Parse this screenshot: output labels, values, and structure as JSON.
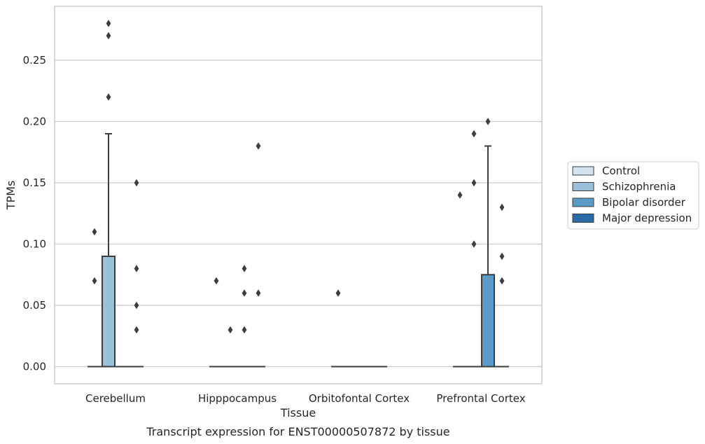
{
  "chart_data": {
    "type": "box",
    "caption": "Transcript expression for ENST00000507872 by tissue",
    "xlabel": "Tissue",
    "ylabel": "TPMs",
    "ylim": [
      -0.014,
      0.294
    ],
    "yticks": [
      0.0,
      0.05,
      0.1,
      0.15,
      0.2,
      0.25
    ],
    "ytick_labels": [
      "0.00",
      "0.05",
      "0.10",
      "0.15",
      "0.20",
      "0.25"
    ],
    "grid": "horizontal",
    "legend_position": "right",
    "categories": [
      "Cerebellum",
      "Hipppocampus",
      "Orbitofontal Cortex",
      "Prefrontal Cortex"
    ],
    "series": [
      {
        "name": "Control",
        "color": "#d4e3f0",
        "boxes": [
          {
            "q1": 0,
            "median": 0,
            "q3": 0,
            "whisker_low": 0,
            "whisker_high": 0,
            "outliers": [
              0.07,
              0.11
            ]
          },
          {
            "q1": 0,
            "median": 0,
            "q3": 0,
            "whisker_low": 0,
            "whisker_high": 0,
            "outliers": [
              0.07
            ]
          },
          {
            "q1": 0,
            "median": 0,
            "q3": 0,
            "whisker_low": 0,
            "whisker_high": 0,
            "outliers": [
              0.06
            ]
          },
          {
            "q1": 0,
            "median": 0,
            "q3": 0,
            "whisker_low": 0,
            "whisker_high": 0,
            "outliers": [
              0.14
            ]
          }
        ]
      },
      {
        "name": "Schizophrenia",
        "color": "#9ac0da",
        "boxes": [
          {
            "q1": 0,
            "median": 0,
            "q3": 0.09,
            "whisker_low": 0,
            "whisker_high": 0.19,
            "outliers": [
              0.22,
              0.27,
              0.28
            ]
          },
          {
            "q1": 0,
            "median": 0,
            "q3": 0,
            "whisker_low": 0,
            "whisker_high": 0,
            "outliers": [
              0.03
            ]
          },
          {
            "q1": 0,
            "median": 0,
            "q3": 0,
            "whisker_low": 0,
            "whisker_high": 0,
            "outliers": []
          },
          {
            "q1": 0,
            "median": 0,
            "q3": 0,
            "whisker_low": 0,
            "whisker_high": 0,
            "outliers": [
              0.1,
              0.15,
              0.19
            ]
          }
        ]
      },
      {
        "name": "Bipolar disorder",
        "color": "#5b9bc8",
        "boxes": [
          {
            "q1": 0,
            "median": 0,
            "q3": 0,
            "whisker_low": 0,
            "whisker_high": 0,
            "outliers": []
          },
          {
            "q1": 0,
            "median": 0,
            "q3": 0,
            "whisker_low": 0,
            "whisker_high": 0,
            "outliers": [
              0.03,
              0.06,
              0.08
            ]
          },
          {
            "q1": 0,
            "median": 0,
            "q3": 0,
            "whisker_low": 0,
            "whisker_high": 0,
            "outliers": []
          },
          {
            "q1": 0,
            "median": 0,
            "q3": 0.075,
            "whisker_low": 0,
            "whisker_high": 0.18,
            "outliers": [
              0.2
            ]
          }
        ]
      },
      {
        "name": "Major depression",
        "color": "#2a6ca8",
        "boxes": [
          {
            "q1": 0,
            "median": 0,
            "q3": 0,
            "whisker_low": 0,
            "whisker_high": 0,
            "outliers": [
              0.03,
              0.05,
              0.08,
              0.15
            ]
          },
          {
            "q1": 0,
            "median": 0,
            "q3": 0,
            "whisker_low": 0,
            "whisker_high": 0,
            "outliers": [
              0.06,
              0.18
            ]
          },
          {
            "q1": 0,
            "median": 0,
            "q3": 0,
            "whisker_low": 0,
            "whisker_high": 0,
            "outliers": []
          },
          {
            "q1": 0,
            "median": 0,
            "q3": 0,
            "whisker_low": 0,
            "whisker_high": 0,
            "outliers": [
              0.07,
              0.09,
              0.13
            ]
          }
        ]
      }
    ]
  }
}
